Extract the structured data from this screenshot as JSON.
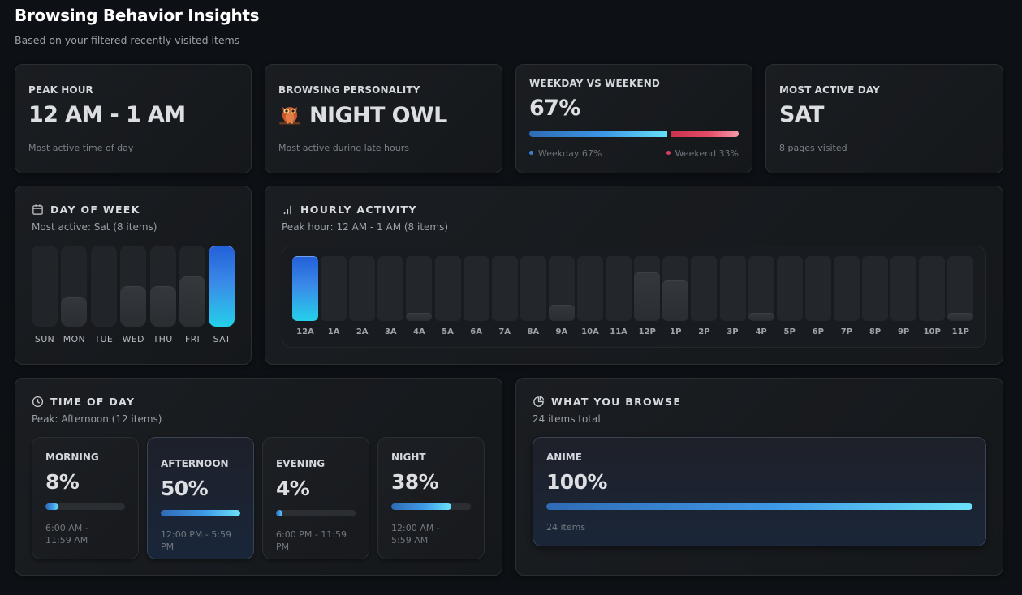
{
  "header": {
    "title": "Browsing Behavior Insights",
    "subtitle": "Based on your filtered recently visited items"
  },
  "stats": {
    "peak_hour": {
      "label": "PEAK HOUR",
      "value": "12 AM - 1 AM",
      "description": "Most active time of day"
    },
    "personality": {
      "label": "BROWSING PERSONALITY",
      "icon": "owl-icon",
      "value": "NIGHT OWL",
      "description": "Most active during late hours"
    },
    "weekday_weekend": {
      "label": "WEEKDAY VS WEEKEND",
      "value": "67%",
      "weekday_percent": 67,
      "weekend_percent": 33,
      "weekday_legend": "Weekday 67%",
      "weekend_legend": "Weekend 33%",
      "weekday_color": "#3d98e6",
      "weekend_color": "#e34b67"
    },
    "most_active_day": {
      "label": "MOST ACTIVE DAY",
      "value": "SAT",
      "description": "8 pages visited"
    }
  },
  "day_of_week": {
    "title": "DAY OF WEEK",
    "icon": "calendar-icon",
    "subtitle": "Most active: Sat (8 items)",
    "days": [
      {
        "label": "SUN",
        "count": 0
      },
      {
        "label": "MON",
        "count": 3
      },
      {
        "label": "TUE",
        "count": 0
      },
      {
        "label": "WED",
        "count": 4
      },
      {
        "label": "THU",
        "count": 4
      },
      {
        "label": "FRI",
        "count": 5
      },
      {
        "label": "SAT",
        "count": 8,
        "peak": true
      }
    ]
  },
  "hourly": {
    "title": "HOURLY ACTIVITY",
    "icon": "signal-bars-icon",
    "subtitle": "Peak hour: 12 AM - 1 AM (8 items)",
    "hours": [
      {
        "label": "12A",
        "count": 8,
        "peak": true
      },
      {
        "label": "1A",
        "count": 0
      },
      {
        "label": "2A",
        "count": 0
      },
      {
        "label": "3A",
        "count": 0
      },
      {
        "label": "4A",
        "count": 1
      },
      {
        "label": "5A",
        "count": 0
      },
      {
        "label": "6A",
        "count": 0
      },
      {
        "label": "7A",
        "count": 0
      },
      {
        "label": "8A",
        "count": 0
      },
      {
        "label": "9A",
        "count": 2
      },
      {
        "label": "10A",
        "count": 0
      },
      {
        "label": "11A",
        "count": 0
      },
      {
        "label": "12P",
        "count": 6
      },
      {
        "label": "1P",
        "count": 5
      },
      {
        "label": "2P",
        "count": 0
      },
      {
        "label": "3P",
        "count": 0
      },
      {
        "label": "4P",
        "count": 1
      },
      {
        "label": "5P",
        "count": 0
      },
      {
        "label": "6P",
        "count": 0
      },
      {
        "label": "7P",
        "count": 0
      },
      {
        "label": "8P",
        "count": 0
      },
      {
        "label": "9P",
        "count": 0
      },
      {
        "label": "10P",
        "count": 0
      },
      {
        "label": "11P",
        "count": 1
      }
    ]
  },
  "time_of_day": {
    "title": "TIME OF DAY",
    "icon": "clock-icon",
    "subtitle": "Peak: Afternoon (12 items)",
    "periods": [
      {
        "name": "MORNING",
        "percent_label": "8%",
        "percent": 8,
        "range": "6:00 AM - 11:59 AM"
      },
      {
        "name": "AFTERNOON",
        "percent_label": "50%",
        "percent": 50,
        "range": "12:00 PM - 5:59 PM",
        "peak": true
      },
      {
        "name": "EVENING",
        "percent_label": "4%",
        "percent": 4,
        "range": "6:00 PM - 11:59 PM"
      },
      {
        "name": "NIGHT",
        "percent_label": "38%",
        "percent": 38,
        "range": "12:00 AM - 5:59 AM"
      }
    ]
  },
  "browse": {
    "title": "WHAT YOU BROWSE",
    "icon": "pie-chart-icon",
    "subtitle": "24 items total",
    "categories": [
      {
        "name": "ANIME",
        "percent_label": "100%",
        "percent": 100,
        "count_label": "24 items"
      }
    ]
  }
}
